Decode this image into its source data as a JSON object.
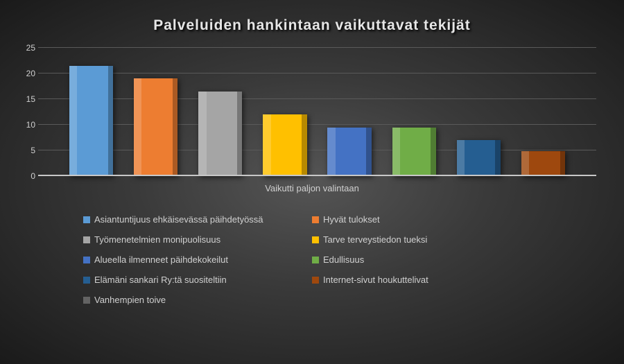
{
  "chart": {
    "type": "bar",
    "title": "Palveluiden hankintaan vaikuttavat tekijät",
    "title_fontsize": 21,
    "title_color": "#e6e6e6",
    "x_axis_label": "Vaikutti paljon valintaan",
    "axis_label_color": "#d0d0d0",
    "axis_label_fontsize": 13,
    "tick_fontsize": 12,
    "background": "radial-gradient",
    "background_colors": [
      "#555555",
      "#3a3a3a",
      "#1a1a1a"
    ],
    "grid_color": "#5a5a5a",
    "axis_line_color": "#c8c8c8",
    "ylim": [
      0,
      25
    ],
    "ytick_step": 5,
    "yticks": [
      0,
      5,
      10,
      15,
      20,
      25
    ],
    "bar_width": 0.68,
    "series": [
      {
        "label": "Asiantuntijuus ehkäisevässä päihdetyössä",
        "value": 21.5,
        "color": "#5b9bd5"
      },
      {
        "label": "Hyvät tulokset",
        "value": 19.0,
        "color": "#ed7d31"
      },
      {
        "label": "Työmenetelmien monipuolisuus",
        "value": 16.5,
        "color": "#a5a5a5"
      },
      {
        "label": "Tarve terveystiedon tueksi",
        "value": 12.0,
        "color": "#ffc000"
      },
      {
        "label": "Alueella ilmenneet päihdekokeilut",
        "value": 9.5,
        "color": "#4472c4"
      },
      {
        "label": "Edullisuus",
        "value": 9.5,
        "color": "#70ad47"
      },
      {
        "label": "Elämäni sankari Ry:tä suositeltiin",
        "value": 7.0,
        "color": "#255e91"
      },
      {
        "label": "Internet-sivut houkuttelivat",
        "value": 4.8,
        "color": "#9e480e"
      },
      {
        "label": "Vanhempien toive",
        "value": 0,
        "color": "#636363"
      }
    ],
    "legend_fontsize": 13,
    "legend_color": "#d0d0d0",
    "legend_columns": 2
  }
}
